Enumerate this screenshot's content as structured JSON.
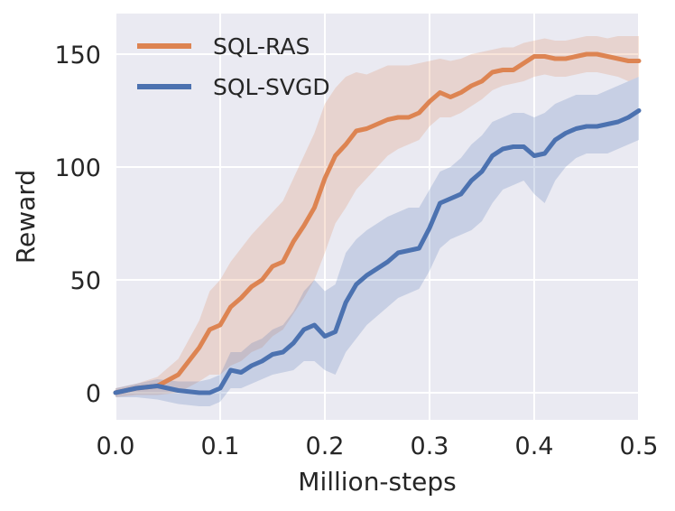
{
  "chart_data": {
    "type": "line",
    "xlabel": "Million-steps",
    "ylabel": "Reward",
    "xlim": [
      0.0,
      0.5
    ],
    "ylim": [
      -12,
      168
    ],
    "xticks": [
      "0.0",
      "0.1",
      "0.2",
      "0.3",
      "0.4",
      "0.5"
    ],
    "yticks": [
      "0",
      "50",
      "100",
      "150"
    ],
    "grid": true,
    "legend_position": "top-left",
    "x": [
      0.0,
      0.02,
      0.04,
      0.06,
      0.08,
      0.09,
      0.1,
      0.11,
      0.12,
      0.13,
      0.14,
      0.15,
      0.16,
      0.17,
      0.18,
      0.19,
      0.2,
      0.21,
      0.22,
      0.23,
      0.24,
      0.25,
      0.26,
      0.27,
      0.28,
      0.29,
      0.3,
      0.31,
      0.32,
      0.33,
      0.34,
      0.35,
      0.36,
      0.37,
      0.38,
      0.39,
      0.4,
      0.41,
      0.42,
      0.43,
      0.44,
      0.45,
      0.46,
      0.47,
      0.48,
      0.49,
      0.5
    ],
    "series": [
      {
        "name": "SQL-RAS",
        "color": "#dd8452",
        "values": [
          0,
          2,
          3,
          8,
          20,
          28,
          30,
          38,
          42,
          47,
          50,
          56,
          58,
          67,
          74,
          82,
          95,
          105,
          110,
          116,
          117,
          119,
          121,
          122,
          122,
          124,
          129,
          133,
          131,
          133,
          136,
          138,
          142,
          143,
          143,
          146,
          149,
          149,
          148,
          148,
          149,
          150,
          150,
          149,
          148,
          147,
          147
        ],
        "lower": [
          -2,
          -1,
          -1,
          0,
          5,
          8,
          8,
          12,
          14,
          18,
          20,
          25,
          28,
          35,
          42,
          50,
          62,
          75,
          82,
          90,
          95,
          100,
          105,
          108,
          110,
          112,
          118,
          122,
          122,
          124,
          127,
          130,
          134,
          136,
          137,
          138,
          140,
          141,
          140,
          140,
          141,
          142,
          142,
          141,
          140,
          138,
          140
        ],
        "upper": [
          2,
          4,
          7,
          15,
          32,
          45,
          50,
          58,
          64,
          70,
          75,
          80,
          85,
          95,
          105,
          115,
          128,
          135,
          140,
          142,
          141,
          143,
          145,
          145,
          145,
          146,
          147,
          148,
          147,
          148,
          150,
          151,
          152,
          153,
          153,
          155,
          156,
          157,
          156,
          156,
          157,
          158,
          158,
          157,
          158,
          158,
          158
        ]
      },
      {
        "name": "SQL-SVGD",
        "color": "#4c72b0",
        "values": [
          0,
          2,
          3,
          1,
          0,
          0,
          2,
          10,
          9,
          12,
          14,
          17,
          18,
          22,
          28,
          30,
          25,
          27,
          40,
          48,
          52,
          55,
          58,
          62,
          63,
          64,
          73,
          84,
          86,
          88,
          94,
          98,
          105,
          108,
          109,
          109,
          105,
          106,
          112,
          115,
          117,
          118,
          118,
          119,
          120,
          122,
          125
        ],
        "lower": [
          -2,
          -2,
          -3,
          -5,
          -6,
          -6,
          -4,
          2,
          2,
          4,
          6,
          8,
          9,
          10,
          14,
          14,
          10,
          8,
          18,
          24,
          30,
          34,
          38,
          42,
          44,
          46,
          54,
          64,
          68,
          70,
          72,
          76,
          84,
          90,
          92,
          94,
          88,
          84,
          94,
          100,
          104,
          106,
          106,
          106,
          108,
          110,
          112
        ],
        "upper": [
          2,
          4,
          6,
          5,
          5,
          6,
          8,
          18,
          18,
          22,
          24,
          28,
          30,
          36,
          45,
          50,
          45,
          48,
          62,
          68,
          72,
          75,
          78,
          80,
          82,
          82,
          90,
          98,
          100,
          104,
          110,
          114,
          120,
          122,
          124,
          124,
          122,
          124,
          128,
          130,
          132,
          132,
          132,
          134,
          136,
          138,
          140
        ]
      }
    ]
  }
}
